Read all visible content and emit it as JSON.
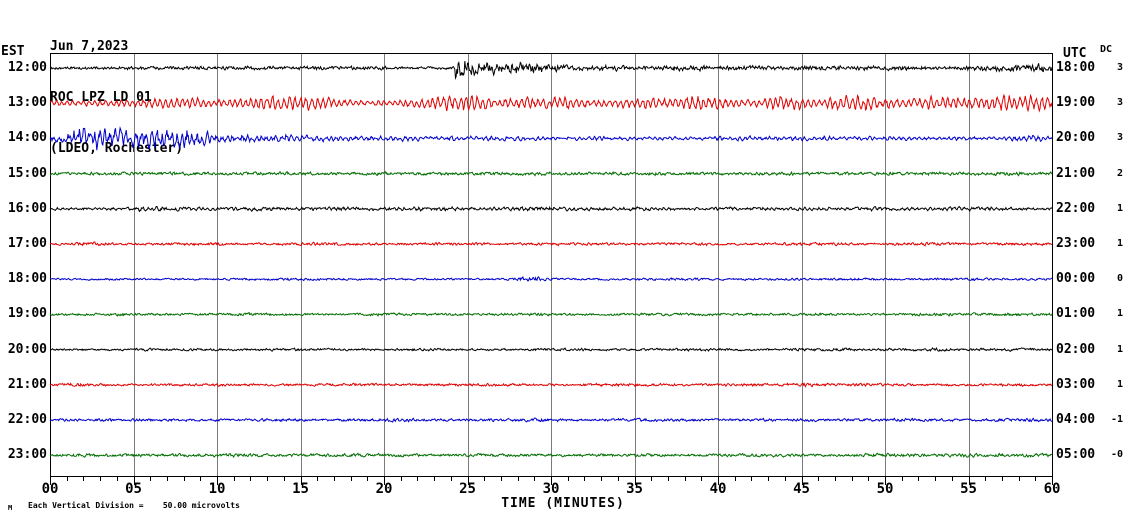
{
  "header": {
    "date": "Jun 7,2023",
    "station": "ROC LPZ LD 01",
    "location": "(LDEO, Rochester)"
  },
  "axes": {
    "left_label": "EST",
    "right_label": "UTC",
    "dc_label": "DC",
    "x_title": "TIME (MINUTES)",
    "x_ticks": [
      "00",
      "05",
      "10",
      "15",
      "20",
      "25",
      "30",
      "35",
      "40",
      "45",
      "50",
      "55",
      "60"
    ],
    "minutes_per_row": 60,
    "minor_tick_every_minutes": 1,
    "major_tick_every_minutes": 5,
    "grid": "vertical lines every 5 minutes"
  },
  "footer": {
    "corner_glyph": "M",
    "scale_note": "Each Vertical Division =    50.00 microvolts"
  },
  "palette": {
    "black": "#000000",
    "red": "#e00000",
    "blue": "#0000cc",
    "green": "#006e00",
    "grid": "#7a7a7a",
    "axis": "#000000",
    "background": "#ffffff"
  },
  "chart_data": {
    "type": "line",
    "variant": "helicorder-seismogram",
    "title": "ROC LPZ LD 01 (LDEO, Rochester) Jun 7,2023",
    "xlabel": "TIME (MINUTES)",
    "x_range_minutes": [
      0,
      60
    ],
    "vertical_division_microvolts": 50.0,
    "rows": [
      {
        "est": "12:00",
        "utc": "18:00",
        "dc": "3",
        "color": "black",
        "base_amp": 1.4,
        "osc": 0.35,
        "period": 0.17,
        "quakes": [
          {
            "t": 24.25,
            "amp": 11,
            "decay": 0.9
          },
          {
            "t": 24.25,
            "amp": 3.2,
            "decay": 5
          }
        ],
        "bursts": [
          [
            8,
            2,
            0.4
          ],
          [
            13,
            2,
            0.5
          ],
          [
            18,
            1.5,
            0.5
          ],
          [
            27.5,
            1.2,
            2.2
          ],
          [
            29.5,
            1,
            1.8
          ],
          [
            33,
            1,
            1.4
          ],
          [
            38,
            1.2,
            1.4
          ],
          [
            42,
            1,
            0.8
          ],
          [
            46.5,
            1.5,
            1
          ],
          [
            51,
            1,
            1
          ],
          [
            55.5,
            1,
            1.5
          ],
          [
            57.5,
            0.8,
            2
          ],
          [
            59.3,
            0.7,
            2.4
          ]
        ]
      },
      {
        "est": "13:00",
        "utc": "19:00",
        "dc": "3",
        "color": "red",
        "base_amp": 3.2,
        "osc": 0.72,
        "period": 0.33,
        "quakes": [],
        "bursts": [
          [
            6.5,
            1.2,
            2.5
          ],
          [
            8.5,
            0.8,
            2
          ],
          [
            13.5,
            1.8,
            5
          ],
          [
            16.2,
            0.8,
            3
          ],
          [
            23.5,
            1.2,
            4
          ],
          [
            25.2,
            0.8,
            4
          ],
          [
            28,
            1.5,
            3.5
          ],
          [
            31,
            0.8,
            3
          ],
          [
            35.5,
            1,
            3.5
          ],
          [
            38.8,
            0.7,
            7
          ],
          [
            40.2,
            0.6,
            3
          ],
          [
            43.8,
            1,
            5
          ],
          [
            48.3,
            1.4,
            5.5
          ],
          [
            53.2,
            1.4,
            4.5
          ],
          [
            57.3,
            1.3,
            7
          ],
          [
            59.6,
            0.5,
            5
          ]
        ]
      },
      {
        "est": "14:00",
        "utc": "20:00",
        "dc": "3",
        "color": "blue",
        "base_amp": 1.7,
        "osc": 0.55,
        "period": 0.3,
        "quakes": [],
        "bursts": [
          [
            1.3,
            0.6,
            5
          ],
          [
            2.4,
            0.9,
            8
          ],
          [
            4.3,
            1.1,
            7
          ],
          [
            6.8,
            1.2,
            8.5
          ],
          [
            8.6,
            0.7,
            5
          ],
          [
            10.8,
            1.2,
            3.5
          ],
          [
            13.8,
            1,
            2.5
          ],
          [
            16.5,
            1.2,
            1.5
          ],
          [
            20.5,
            1.5,
            1
          ],
          [
            24.5,
            1.5,
            1
          ],
          [
            28,
            1.5,
            0.8
          ],
          [
            33,
            2,
            0.6
          ],
          [
            41,
            2,
            1
          ],
          [
            45.5,
            1.5,
            1
          ],
          [
            50,
            1.5,
            0.6
          ],
          [
            54,
            1,
            0.6
          ],
          [
            58.6,
            0.8,
            2
          ]
        ]
      },
      {
        "est": "15:00",
        "utc": "21:00",
        "dc": "2",
        "color": "green",
        "base_amp": 1.3,
        "osc": 0.25,
        "period": 0.2,
        "quakes": [],
        "bursts": [
          [
            6,
            2,
            0.4
          ],
          [
            13,
            2,
            0.4
          ],
          [
            21,
            2,
            0.3
          ],
          [
            28,
            2,
            0.4
          ],
          [
            36,
            2,
            0.3
          ],
          [
            44,
            2,
            0.3
          ],
          [
            52,
            2,
            0.4
          ],
          [
            58,
            1.5,
            0.4
          ]
        ]
      },
      {
        "est": "16:00",
        "utc": "22:00",
        "dc": "1",
        "color": "black",
        "base_amp": 1.5,
        "osc": 0.4,
        "period": 0.28,
        "quakes": [],
        "bursts": [
          [
            6.5,
            1.2,
            1.2
          ],
          [
            12,
            1.5,
            0.8
          ],
          [
            17,
            1.5,
            0.6
          ],
          [
            23,
            1.5,
            0.7
          ],
          [
            29.5,
            1.5,
            0.9
          ],
          [
            35,
            1.5,
            0.6
          ],
          [
            42,
            1.5,
            0.6
          ],
          [
            49,
            1.5,
            0.5
          ],
          [
            55,
            1.5,
            0.6
          ]
        ]
      },
      {
        "est": "17:00",
        "utc": "23:00",
        "dc": "1",
        "color": "red",
        "base_amp": 1.0,
        "osc": 0.2,
        "period": 0.22,
        "quakes": [],
        "bursts": [
          [
            2.5,
            0.8,
            0.8
          ],
          [
            9,
            1.5,
            0.4
          ],
          [
            16,
            1.5,
            0.4
          ],
          [
            24,
            1.5,
            0.4
          ],
          [
            31,
            1.5,
            0.4
          ],
          [
            38,
            1.5,
            0.4
          ],
          [
            46,
            1.5,
            0.5
          ],
          [
            53,
            1.5,
            0.5
          ],
          [
            58,
            1,
            0.4
          ]
        ]
      },
      {
        "est": "18:00",
        "utc": "00:00",
        "dc": "0",
        "color": "blue",
        "base_amp": 0.85,
        "osc": 0.15,
        "period": 0.2,
        "quakes": [],
        "bursts": [
          [
            14,
            2,
            0.3
          ],
          [
            28.6,
            0.5,
            1.4
          ],
          [
            29.5,
            0.4,
            0.8
          ],
          [
            38,
            2,
            0.25
          ],
          [
            47,
            2,
            0.25
          ],
          [
            56,
            2,
            0.3
          ]
        ]
      },
      {
        "est": "19:00",
        "utc": "01:00",
        "dc": "1",
        "color": "green",
        "base_amp": 1.0,
        "osc": 0.18,
        "period": 0.2,
        "quakes": [],
        "bursts": [
          [
            4,
            1.5,
            0.3
          ],
          [
            12,
            1.5,
            0.3
          ],
          [
            20,
            1.5,
            0.3
          ],
          [
            29,
            1.5,
            0.3
          ],
          [
            37,
            1.5,
            0.3
          ],
          [
            45,
            1.5,
            0.3
          ],
          [
            53,
            1.5,
            0.35
          ],
          [
            58,
            1.5,
            0.35
          ]
        ]
      },
      {
        "est": "20:00",
        "utc": "02:00",
        "dc": "1",
        "color": "black",
        "base_amp": 1.0,
        "osc": 0.25,
        "period": 0.2,
        "quakes": [],
        "bursts": [
          [
            7,
            1.5,
            0.3
          ],
          [
            15,
            1.5,
            0.3
          ],
          [
            23,
            1.5,
            0.35
          ],
          [
            31,
            1.5,
            0.3
          ],
          [
            39,
            1.5,
            0.35
          ],
          [
            47,
            1.5,
            0.4
          ],
          [
            52.5,
            1.5,
            0.5
          ],
          [
            58,
            1.5,
            0.35
          ]
        ]
      },
      {
        "est": "21:00",
        "utc": "03:00",
        "dc": "1",
        "color": "red",
        "base_amp": 1.0,
        "osc": 0.2,
        "period": 0.2,
        "quakes": [],
        "bursts": [
          [
            1.5,
            0.8,
            0.8
          ],
          [
            10,
            1.5,
            0.3
          ],
          [
            18,
            1.5,
            0.3
          ],
          [
            26,
            1.5,
            0.3
          ],
          [
            34,
            1.5,
            0.35
          ],
          [
            41,
            1.5,
            0.4
          ],
          [
            45.5,
            1,
            0.6
          ],
          [
            50,
            1.5,
            0.4
          ],
          [
            57,
            1.5,
            0.4
          ]
        ]
      },
      {
        "est": "22:00",
        "utc": "04:00",
        "dc": "-1",
        "color": "blue",
        "base_amp": 1.1,
        "osc": 0.18,
        "period": 0.2,
        "quakes": [],
        "bursts": [
          [
            5,
            1.5,
            0.3
          ],
          [
            13,
            1.5,
            0.35
          ],
          [
            21,
            1.5,
            0.4
          ],
          [
            29,
            1.5,
            0.35
          ],
          [
            36,
            1.5,
            0.35
          ],
          [
            44,
            1.5,
            0.3
          ],
          [
            51,
            1.5,
            0.35
          ],
          [
            58,
            1.5,
            0.4
          ]
        ]
      },
      {
        "est": "23:00",
        "utc": "05:00",
        "dc": "-0",
        "color": "green",
        "base_amp": 1.2,
        "osc": 0.2,
        "period": 0.2,
        "quakes": [],
        "bursts": [
          [
            3,
            1.5,
            0.4
          ],
          [
            11,
            1.5,
            0.35
          ],
          [
            19,
            1.5,
            0.35
          ],
          [
            27,
            1.5,
            0.3
          ],
          [
            35,
            1.5,
            0.3
          ],
          [
            43,
            1.5,
            0.35
          ],
          [
            50,
            1.5,
            0.4
          ],
          [
            55.5,
            1,
            0.7
          ],
          [
            59,
            1,
            0.4
          ]
        ]
      }
    ]
  }
}
